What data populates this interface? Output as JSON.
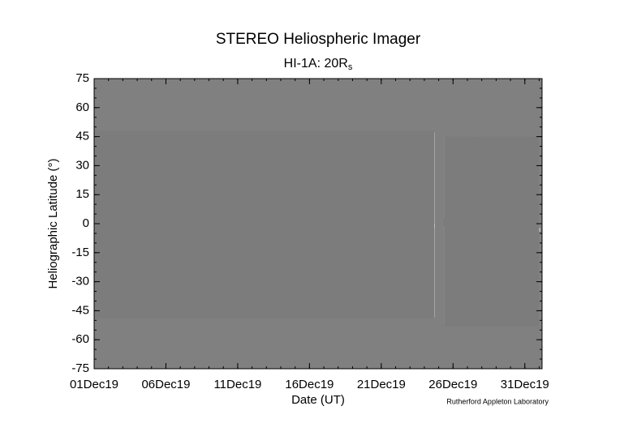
{
  "chart_data": {
    "type": "image",
    "title": "STEREO Heliospheric Imager",
    "subtitle": {
      "text": "HI-1A: 20R",
      "subscript": "s"
    },
    "x_label": "Date (UT)",
    "y_label": "Heliographic Latitude (°)",
    "annotation": "Rutherford Appleton Laboratory",
    "xlim": [
      0,
      31.2
    ],
    "xticks": [
      {
        "value": 0,
        "label": "01Dec19"
      },
      {
        "value": 5,
        "label": "06Dec19"
      },
      {
        "value": 10,
        "label": "11Dec19"
      },
      {
        "value": 15,
        "label": "16Dec19"
      },
      {
        "value": 20,
        "label": "21Dec19"
      },
      {
        "value": 25,
        "label": "26Dec19"
      },
      {
        "value": 30,
        "label": "31Dec19"
      }
    ],
    "ylim": [
      -75,
      75
    ],
    "yticks": [
      -75,
      -60,
      -45,
      -30,
      -15,
      0,
      15,
      30,
      45,
      60,
      75
    ],
    "background_color": "#808080",
    "data_blocks": [
      {
        "x": [
          0,
          23.7
        ],
        "lat": [
          -49,
          48
        ]
      },
      {
        "x": [
          24.4,
          31.0
        ],
        "lat": [
          -53,
          45
        ]
      }
    ]
  }
}
